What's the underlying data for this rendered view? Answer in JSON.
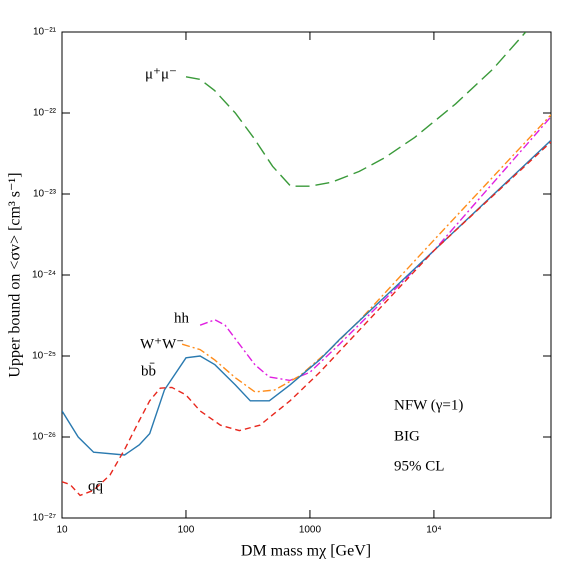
{
  "chart_data": {
    "type": "line",
    "xlabel": "DM mass mχ [GeV]",
    "ylabel": "Upper bound on <σv> [cm³ s⁻¹]",
    "xscale": "log",
    "yscale": "log",
    "xlim": [
      10,
      88000
    ],
    "ylim": [
      1e-27,
      1e-21
    ],
    "xticks": [
      10,
      100,
      1000,
      {
        "value": 10000,
        "label": "10⁴"
      }
    ],
    "yticks": [
      {
        "value": 1e-27,
        "label": "10⁻²⁷"
      },
      {
        "value": 1e-26,
        "label": "10⁻²⁶"
      },
      {
        "value": 1e-25,
        "label": "10⁻²⁵"
      },
      {
        "value": 1e-24,
        "label": "10⁻²⁴"
      },
      {
        "value": 1e-23,
        "label": "10⁻²³"
      },
      {
        "value": 1e-22,
        "label": "10⁻²²"
      },
      {
        "value": 1e-21,
        "label": "10⁻²¹"
      }
    ],
    "annotations": [
      "NFW (γ=1)",
      "BIG",
      "95% CL"
    ],
    "series": [
      {
        "name": "μ⁺μ⁻",
        "color": "#3a9a3a",
        "linestyle": "longdash",
        "x": [
          100,
          130,
          170,
          250,
          350,
          500,
          700,
          1000,
          1500,
          2500,
          4000,
          7000,
          15000,
          30000,
          55000
        ],
        "values": [
          2.8e-22,
          2.6e-22,
          1.9e-22,
          1e-22,
          5e-23,
          2.2e-23,
          1.25e-23,
          1.25e-23,
          1.4e-23,
          1.9e-23,
          2.8e-23,
          5e-23,
          1.3e-22,
          3.5e-22,
          1e-21
        ]
      },
      {
        "name": "hh",
        "color": "#e020e0",
        "linestyle": "dashdot",
        "x": [
          130,
          171,
          207,
          270,
          360,
          470,
          690,
          1000,
          1730,
          10000,
          88000
        ],
        "values": [
          2.4e-25,
          2.8e-25,
          2.4e-25,
          1.4e-25,
          7.8e-26,
          5.5e-26,
          5e-26,
          6.3e-26,
          1.4e-25,
          2e-24,
          9e-23
        ]
      },
      {
        "name": "W⁺W⁻",
        "color": "#ff8c1a",
        "linestyle": "dashdot",
        "x": [
          93,
          130,
          171,
          250,
          360,
          520,
          830,
          1450,
          2540,
          10000,
          88000
        ],
        "values": [
          1.4e-25,
          1.2e-25,
          8.9e-26,
          5.4e-26,
          3.6e-26,
          3.8e-26,
          5.7e-26,
          1.2e-25,
          2.8e-25,
          2.7e-24,
          9.5e-23
        ]
      },
      {
        "name": "bb̄",
        "color": "#2a7ab0",
        "linestyle": "solid",
        "x": [
          10,
          13.5,
          18,
          32,
          42,
          51,
          67,
          100,
          130,
          171,
          250,
          330,
          470,
          690,
          1200,
          1730,
          10000,
          88000
        ],
        "values": [
          2.1e-26,
          1e-26,
          6.5e-27,
          6e-27,
          8e-27,
          1.1e-26,
          3.8e-26,
          9.5e-26,
          1e-25,
          7.8e-26,
          4.4e-26,
          2.8e-26,
          2.8e-26,
          4.4e-26,
          9e-26,
          1.6e-25,
          2e-24,
          4.6e-23
        ]
      },
      {
        "name": "qq̄",
        "color": "#e8281e",
        "linestyle": "dashed",
        "x": [
          10,
          11.6,
          14,
          18,
          24.4,
          32,
          42,
          51,
          62,
          77,
          100,
          130,
          190,
          270,
          395,
          690,
          1200,
          10000,
          88000
        ],
        "values": [
          2.8e-27,
          2.6e-27,
          1.9e-27,
          2.2e-27,
          3.4e-27,
          7e-27,
          1.6e-26,
          2.8e-26,
          4e-26,
          4.1e-26,
          3.3e-26,
          2.1e-26,
          1.4e-26,
          1.2e-26,
          1.4e-26,
          2.8e-26,
          6.3e-26,
          2e-24,
          4.4e-23
        ]
      }
    ]
  }
}
